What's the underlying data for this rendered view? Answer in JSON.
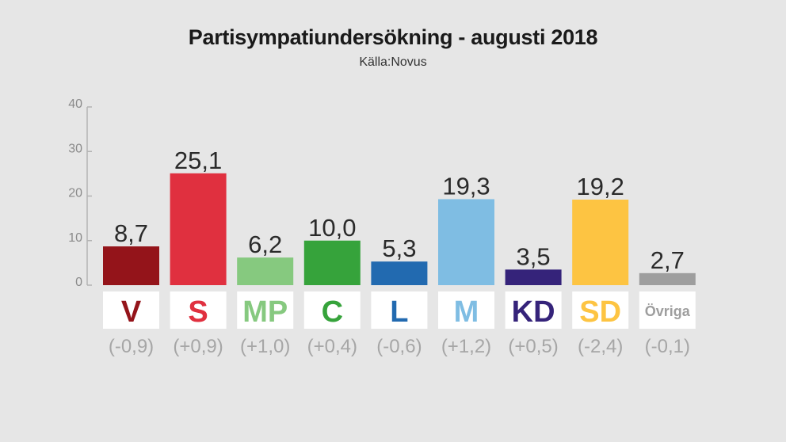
{
  "title": "Partisympatiundersökning - augusti 2018",
  "subtitle": "Källa:Novus",
  "chart_data": {
    "type": "bar",
    "title": "Partisympatiundersökning - augusti 2018",
    "subtitle": "Källa:Novus",
    "categories": [
      "V",
      "S",
      "MP",
      "C",
      "L",
      "M",
      "KD",
      "SD",
      "Övriga"
    ],
    "values": [
      8.7,
      25.1,
      6.2,
      10.0,
      5.3,
      19.3,
      3.5,
      19.2,
      2.7
    ],
    "value_labels": [
      "8,7",
      "25,1",
      "6,2",
      "10,0",
      "5,3",
      "19,3",
      "3,5",
      "19,2",
      "2,7"
    ],
    "changes": [
      "(-0,9)",
      "(+0,9)",
      "(+1,0)",
      "(+0,4)",
      "(-0,6)",
      "(+1,2)",
      "(+0,5)",
      "(-2,4)",
      "(-0,1)"
    ],
    "colors": [
      "#94141a",
      "#e0303f",
      "#86c97f",
      "#36a33b",
      "#226ab0",
      "#7fbde3",
      "#35237a",
      "#fdc442",
      "#9e9e9e"
    ],
    "yticks": [
      0,
      10,
      20,
      30,
      40
    ],
    "ylim": [
      0,
      40
    ],
    "grid": false,
    "legend": "none"
  }
}
